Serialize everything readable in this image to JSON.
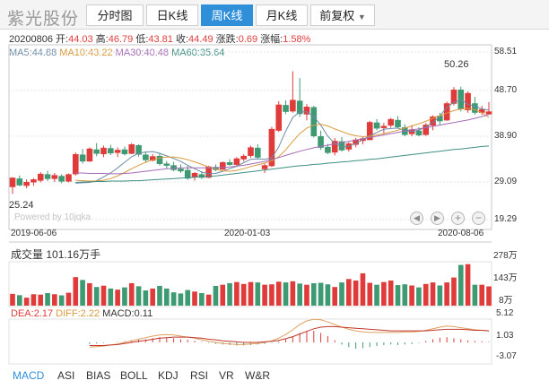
{
  "header": {
    "stock_name": "紫光股份",
    "tabs": [
      {
        "label": "分时图",
        "active": false
      },
      {
        "label": "日K线",
        "active": false
      },
      {
        "label": "周K线",
        "active": true
      },
      {
        "label": "月K线",
        "active": false
      }
    ],
    "adjust": {
      "label": "前复权",
      "arrow": "▼"
    }
  },
  "quote": {
    "date": "20200806",
    "open_label": "开:",
    "open": "44.03",
    "high_label": "高:",
    "high": "46.79",
    "low_label": "低:",
    "low": "43.81",
    "close_label": "收:",
    "close": "44.49",
    "change_label": "涨跌:",
    "change": "0.69",
    "pct_label": "涨幅:",
    "pct": "1.58%"
  },
  "ma": {
    "ma5_label": "MA5:",
    "ma5": "44.88",
    "ma10_label": "MA10:",
    "ma10": "43.22",
    "ma30_label": "MA30:",
    "ma30": "40.48",
    "ma60_label": "MA60:",
    "ma60": "35.64"
  },
  "price_axis": {
    "ticks": [
      "58.51",
      "48.70",
      "38.90",
      "29.09",
      "19.29"
    ]
  },
  "date_axis": {
    "ticks": [
      "2019-06-06",
      "2020-01-03",
      "2020-08-06"
    ]
  },
  "annotations": {
    "max": "50.26",
    "min": "25.24"
  },
  "watermark": "Powered by 10jqka",
  "volume": {
    "title": "成交量",
    "value": "101.16万手",
    "ticks": [
      "278万",
      "143万",
      "8万"
    ]
  },
  "macd": {
    "dea_label": "DEA:",
    "dea": "2.17",
    "diff_label": "DIFF:",
    "diff": "2.22",
    "macd_label": "MACD:",
    "macd": "0.11",
    "ticks": [
      "5.12",
      "1.03",
      "-3.07"
    ]
  },
  "indicator_tabs": [
    "MACD",
    "ASI",
    "BIAS",
    "BOLL",
    "KDJ",
    "RSI",
    "VR",
    "W&R"
  ],
  "colors": {
    "up": "#e03b3b",
    "down": "#3e9a72",
    "tab_active": "#2f8fd8",
    "ma5": "#6c8aa6",
    "ma10": "#d99a3a",
    "ma30": "#a56bb5",
    "ma60": "#3f8f84",
    "dea": "#c0392b",
    "diff": "#e0a060"
  },
  "chart_data": [
    {
      "type": "candlestick",
      "title": "",
      "ylim": [
        19.29,
        58.51
      ],
      "x_start": "2019-06-06",
      "x_end": "2020-08-06",
      "series": [
        {
          "name": "OHLC",
          "values": [
            [
              27.0,
              29.2,
              25.3,
              29.0
            ],
            [
              28.8,
              29.6,
              27.1,
              27.4
            ],
            [
              27.3,
              28.7,
              26.6,
              28.0
            ],
            [
              28.1,
              29.0,
              27.2,
              28.6
            ],
            [
              28.5,
              30.4,
              28.0,
              29.9
            ],
            [
              29.8,
              30.7,
              28.3,
              28.9
            ],
            [
              28.9,
              30.2,
              28.1,
              29.6
            ],
            [
              29.4,
              29.9,
              27.8,
              28.3
            ],
            [
              28.3,
              30.1,
              28.0,
              29.8
            ],
            [
              30.0,
              35.0,
              29.6,
              34.5
            ],
            [
              34.4,
              35.8,
              32.4,
              33.0
            ],
            [
              33.0,
              36.2,
              32.8,
              35.8
            ],
            [
              35.6,
              37.2,
              34.1,
              34.8
            ],
            [
              34.7,
              36.6,
              33.9,
              36.0
            ],
            [
              35.9,
              36.8,
              34.4,
              34.9
            ],
            [
              35.0,
              36.2,
              33.9,
              35.5
            ],
            [
              35.6,
              36.4,
              34.3,
              34.7
            ],
            [
              34.8,
              37.2,
              34.6,
              36.8
            ],
            [
              36.6,
              36.9,
              34.0,
              34.6
            ],
            [
              34.4,
              35.2,
              32.6,
              33.3
            ],
            [
              33.2,
              34.6,
              32.9,
              34.0
            ],
            [
              34.1,
              34.9,
              31.9,
              32.4
            ],
            [
              32.3,
              33.0,
              31.2,
              32.0
            ],
            [
              31.9,
              32.8,
              30.6,
              31.0
            ],
            [
              31.1,
              32.2,
              30.2,
              30.7
            ],
            [
              30.8,
              31.9,
              28.6,
              29.0
            ],
            [
              29.3,
              30.4,
              28.4,
              30.1
            ],
            [
              29.8,
              30.6,
              28.8,
              29.2
            ],
            [
              29.2,
              31.9,
              29.0,
              31.6
            ],
            [
              31.5,
              32.2,
              30.6,
              31.0
            ],
            [
              31.1,
              32.9,
              30.9,
              32.6
            ],
            [
              32.6,
              33.4,
              31.9,
              32.2
            ],
            [
              32.2,
              33.9,
              31.6,
              33.5
            ],
            [
              33.5,
              34.6,
              32.9,
              34.1
            ],
            [
              34.3,
              36.6,
              33.8,
              36.1
            ],
            [
              36.0,
              36.9,
              33.6,
              33.9
            ],
            [
              31.2,
              32.4,
              30.2,
              31.9
            ],
            [
              31.9,
              41.0,
              31.6,
              40.4
            ],
            [
              40.2,
              47.0,
              39.8,
              46.1
            ],
            [
              46.0,
              47.2,
              44.0,
              44.6
            ],
            [
              44.7,
              54.0,
              44.3,
              47.2
            ],
            [
              47.0,
              52.4,
              43.3,
              44.1
            ],
            [
              44.0,
              46.3,
              42.5,
              45.6
            ],
            [
              45.5,
              45.9,
              38.5,
              38.9
            ],
            [
              38.7,
              40.1,
              35.6,
              36.2
            ],
            [
              36.2,
              37.0,
              34.6,
              35.0
            ],
            [
              35.1,
              38.4,
              34.3,
              37.6
            ],
            [
              37.5,
              38.6,
              35.2,
              35.6
            ],
            [
              35.8,
              37.4,
              35.2,
              37.0
            ],
            [
              36.9,
              38.4,
              36.2,
              37.9
            ],
            [
              37.8,
              38.6,
              36.9,
              38.2
            ],
            [
              38.0,
              42.4,
              37.9,
              42.0
            ],
            [
              41.9,
              42.8,
              40.2,
              40.7
            ],
            [
              40.8,
              41.9,
              39.5,
              41.1
            ],
            [
              41.4,
              43.1,
              40.8,
              42.7
            ],
            [
              42.5,
              43.5,
              40.7,
              41.0
            ],
            [
              40.8,
              41.6,
              38.8,
              39.2
            ],
            [
              39.4,
              41.4,
              38.8,
              40.3
            ],
            [
              40.0,
              40.9,
              38.8,
              39.1
            ],
            [
              39.2,
              41.9,
              38.9,
              41.4
            ],
            [
              41.4,
              43.7,
              40.2,
              43.3
            ],
            [
              43.5,
              44.3,
              41.5,
              42.4
            ],
            [
              42.6,
              46.9,
              42.4,
              46.4
            ],
            [
              46.5,
              50.3,
              46.0,
              49.6
            ],
            [
              49.6,
              50.4,
              44.6,
              45.2
            ],
            [
              45.0,
              49.3,
              44.3,
              48.8
            ],
            [
              46.4,
              48.0,
              43.8,
              44.4
            ],
            [
              44.4,
              45.9,
              43.8,
              45.0
            ],
            [
              44.03,
              46.79,
              43.81,
              44.49
            ]
          ]
        },
        {
          "name": "MA5",
          "values": [
            27.8,
            27.9,
            28.0,
            28.4,
            29.3,
            30.2,
            31.4,
            32.7,
            34.0,
            34.8,
            35.1,
            35.2,
            34.8,
            34.2,
            33.6,
            32.9,
            32.0,
            31.2,
            30.4,
            30.0,
            30.1,
            30.6,
            31.2,
            31.8,
            32.6,
            33.4,
            33.5,
            33.4,
            33.7,
            36.3,
            40.0,
            43.2,
            44.5,
            44.5,
            43.4,
            41.4,
            38.8,
            37.1,
            36.3,
            36.4,
            37.1,
            38.0,
            38.9,
            39.7,
            40.4,
            40.6,
            40.7,
            40.1,
            39.9,
            40.2,
            41.0,
            42.0,
            43.5,
            45.6,
            46.7,
            47.3,
            46.3,
            45.8,
            45.2,
            44.9
          ]
        },
        {
          "name": "MA10",
          "values": [
            28.5,
            28.4,
            28.3,
            28.3,
            28.5,
            28.9,
            29.5,
            30.3,
            31.2,
            32.0,
            32.7,
            33.3,
            33.7,
            33.9,
            33.9,
            33.7,
            33.3,
            32.8,
            32.2,
            31.6,
            31.1,
            30.7,
            30.6,
            30.8,
            31.2,
            31.7,
            32.1,
            32.5,
            33.0,
            34.0,
            35.6,
            37.6,
            39.4,
            40.7,
            41.4,
            41.6,
            41.2,
            40.5,
            39.9,
            39.3,
            38.9,
            38.7,
            38.8,
            39.1,
            39.4,
            39.8,
            40.2,
            40.7,
            41.2,
            41.7,
            42.3,
            43.0,
            43.6,
            44.2,
            44.8,
            45.2,
            45.3,
            45.0,
            44.3,
            43.2
          ]
        },
        {
          "name": "MA30",
          "values": [
            30.2,
            30.2,
            30.1,
            30.1,
            30.1,
            30.0,
            30.0,
            30.1,
            30.2,
            30.4,
            30.6,
            30.8,
            31.0,
            31.2,
            31.3,
            31.4,
            31.4,
            31.4,
            31.4,
            31.4,
            31.4,
            31.5,
            31.6,
            31.8,
            32.0,
            32.3,
            32.6,
            32.9,
            33.3,
            33.8,
            34.3,
            34.8,
            35.3,
            35.7,
            36.1,
            36.4,
            36.7,
            37.0,
            37.3,
            37.6,
            37.9,
            38.2,
            38.5,
            38.8,
            39.1,
            39.4,
            39.7,
            40.0,
            40.3,
            40.5,
            40.8,
            41.1,
            41.4,
            41.7,
            42.0,
            42.3,
            42.6,
            43.0,
            43.4,
            43.9
          ]
        },
        {
          "name": "MA60",
          "values": [
            28.0,
            28.1,
            28.1,
            28.2,
            28.2,
            28.3,
            28.3,
            28.3,
            28.4,
            28.4,
            28.5,
            28.6,
            28.7,
            28.8,
            28.9,
            29.0,
            29.1,
            29.2,
            29.3,
            29.4,
            29.5,
            29.7,
            29.9,
            30.1,
            30.3,
            30.5,
            30.7,
            30.9,
            31.1,
            31.3,
            31.5,
            31.7,
            31.9,
            32.0,
            32.2,
            32.3,
            32.5,
            32.6,
            32.8,
            32.9,
            33.1,
            33.2,
            33.4,
            33.5,
            33.7,
            33.9,
            34.1,
            34.3,
            34.5,
            34.7,
            34.9,
            35.1,
            35.3,
            35.5,
            35.7,
            35.8,
            36.0,
            36.2,
            36.4,
            36.5
          ]
        }
      ]
    },
    {
      "type": "bar",
      "title": "成交量",
      "unit": "万手",
      "ylim": [
        8,
        278
      ],
      "series": [
        {
          "name": "VOL",
          "values": [
            62,
            55,
            42,
            60,
            58,
            66,
            60,
            54,
            68,
            150,
            135,
            118,
            98,
            105,
            90,
            84,
            96,
            118,
            102,
            80,
            90,
            104,
            90,
            70,
            64,
            82,
            74,
            66,
            58,
            104,
            110,
            118,
            124,
            114,
            124,
            122,
            110,
            112,
            126,
            122,
            128,
            116,
            110,
            118,
            120,
            112,
            98,
            122,
            140,
            132,
            170,
            120,
            110,
            124,
            132,
            108,
            112,
            106,
            96,
            114,
            122,
            106,
            122,
            148,
            214,
            218,
            110,
            110,
            101.16
          ]
        }
      ]
    },
    {
      "type": "bar",
      "title": "MACD",
      "ylim": [
        -3.07,
        5.12
      ],
      "series": [
        {
          "name": "MACD",
          "values": [
            -0.3,
            -0.2,
            -0.1,
            0.0,
            0.1,
            0.2,
            0.4,
            0.5,
            0.6,
            0.8,
            1.0,
            0.9,
            0.8,
            0.6,
            0.5,
            0.3,
            0.1,
            -0.1,
            -0.3,
            -0.4,
            -0.5,
            -0.6,
            -0.6,
            -0.5,
            -0.4,
            -0.3,
            -0.1,
            0.2,
            0.6,
            1.2,
            1.8,
            2.2,
            2.2,
            1.8,
            1.2,
            0.4,
            -0.4,
            -0.9,
            -1.2,
            -1.1,
            -0.9,
            -0.7,
            -0.5,
            -0.4,
            -0.5,
            -0.4,
            -0.3,
            -0.1,
            0.3,
            0.6,
            0.9,
            1.0,
            0.8,
            0.6,
            0.4,
            0.3,
            0.2,
            0.11
          ]
        },
        {
          "name": "DIFF",
          "values": [
            -0.9,
            -0.8,
            -0.7,
            -0.5,
            -0.3,
            0.0,
            0.3,
            0.6,
            0.9,
            1.2,
            1.4,
            1.5,
            1.4,
            1.2,
            1.0,
            0.8,
            0.5,
            0.2,
            0.0,
            -0.2,
            -0.3,
            -0.4,
            -0.4,
            -0.3,
            -0.2,
            0.0,
            0.3,
            0.8,
            1.5,
            2.4,
            3.4,
            4.1,
            4.4,
            4.3,
            3.9,
            3.4,
            2.9,
            2.5,
            2.2,
            2.0,
            1.9,
            1.9,
            1.9,
            1.9,
            1.9,
            2.0,
            2.0,
            2.1,
            2.3,
            2.6,
            2.9,
            3.1,
            3.0,
            2.8,
            2.6,
            2.4,
            2.3,
            2.22
          ]
        },
        {
          "name": "DEA",
          "values": [
            -0.6,
            -0.6,
            -0.6,
            -0.5,
            -0.4,
            -0.2,
            0.0,
            0.2,
            0.4,
            0.6,
            0.8,
            0.9,
            1.0,
            1.0,
            1.0,
            0.9,
            0.8,
            0.6,
            0.5,
            0.3,
            0.2,
            0.1,
            0.0,
            0.0,
            0.0,
            0.1,
            0.2,
            0.4,
            0.7,
            1.1,
            1.6,
            2.1,
            2.6,
            2.9,
            3.0,
            3.0,
            2.9,
            2.8,
            2.7,
            2.6,
            2.5,
            2.4,
            2.3,
            2.2,
            2.2,
            2.2,
            2.2,
            2.2,
            2.2,
            2.3,
            2.4,
            2.5,
            2.5,
            2.5,
            2.4,
            2.3,
            2.3,
            2.17
          ]
        }
      ]
    }
  ]
}
